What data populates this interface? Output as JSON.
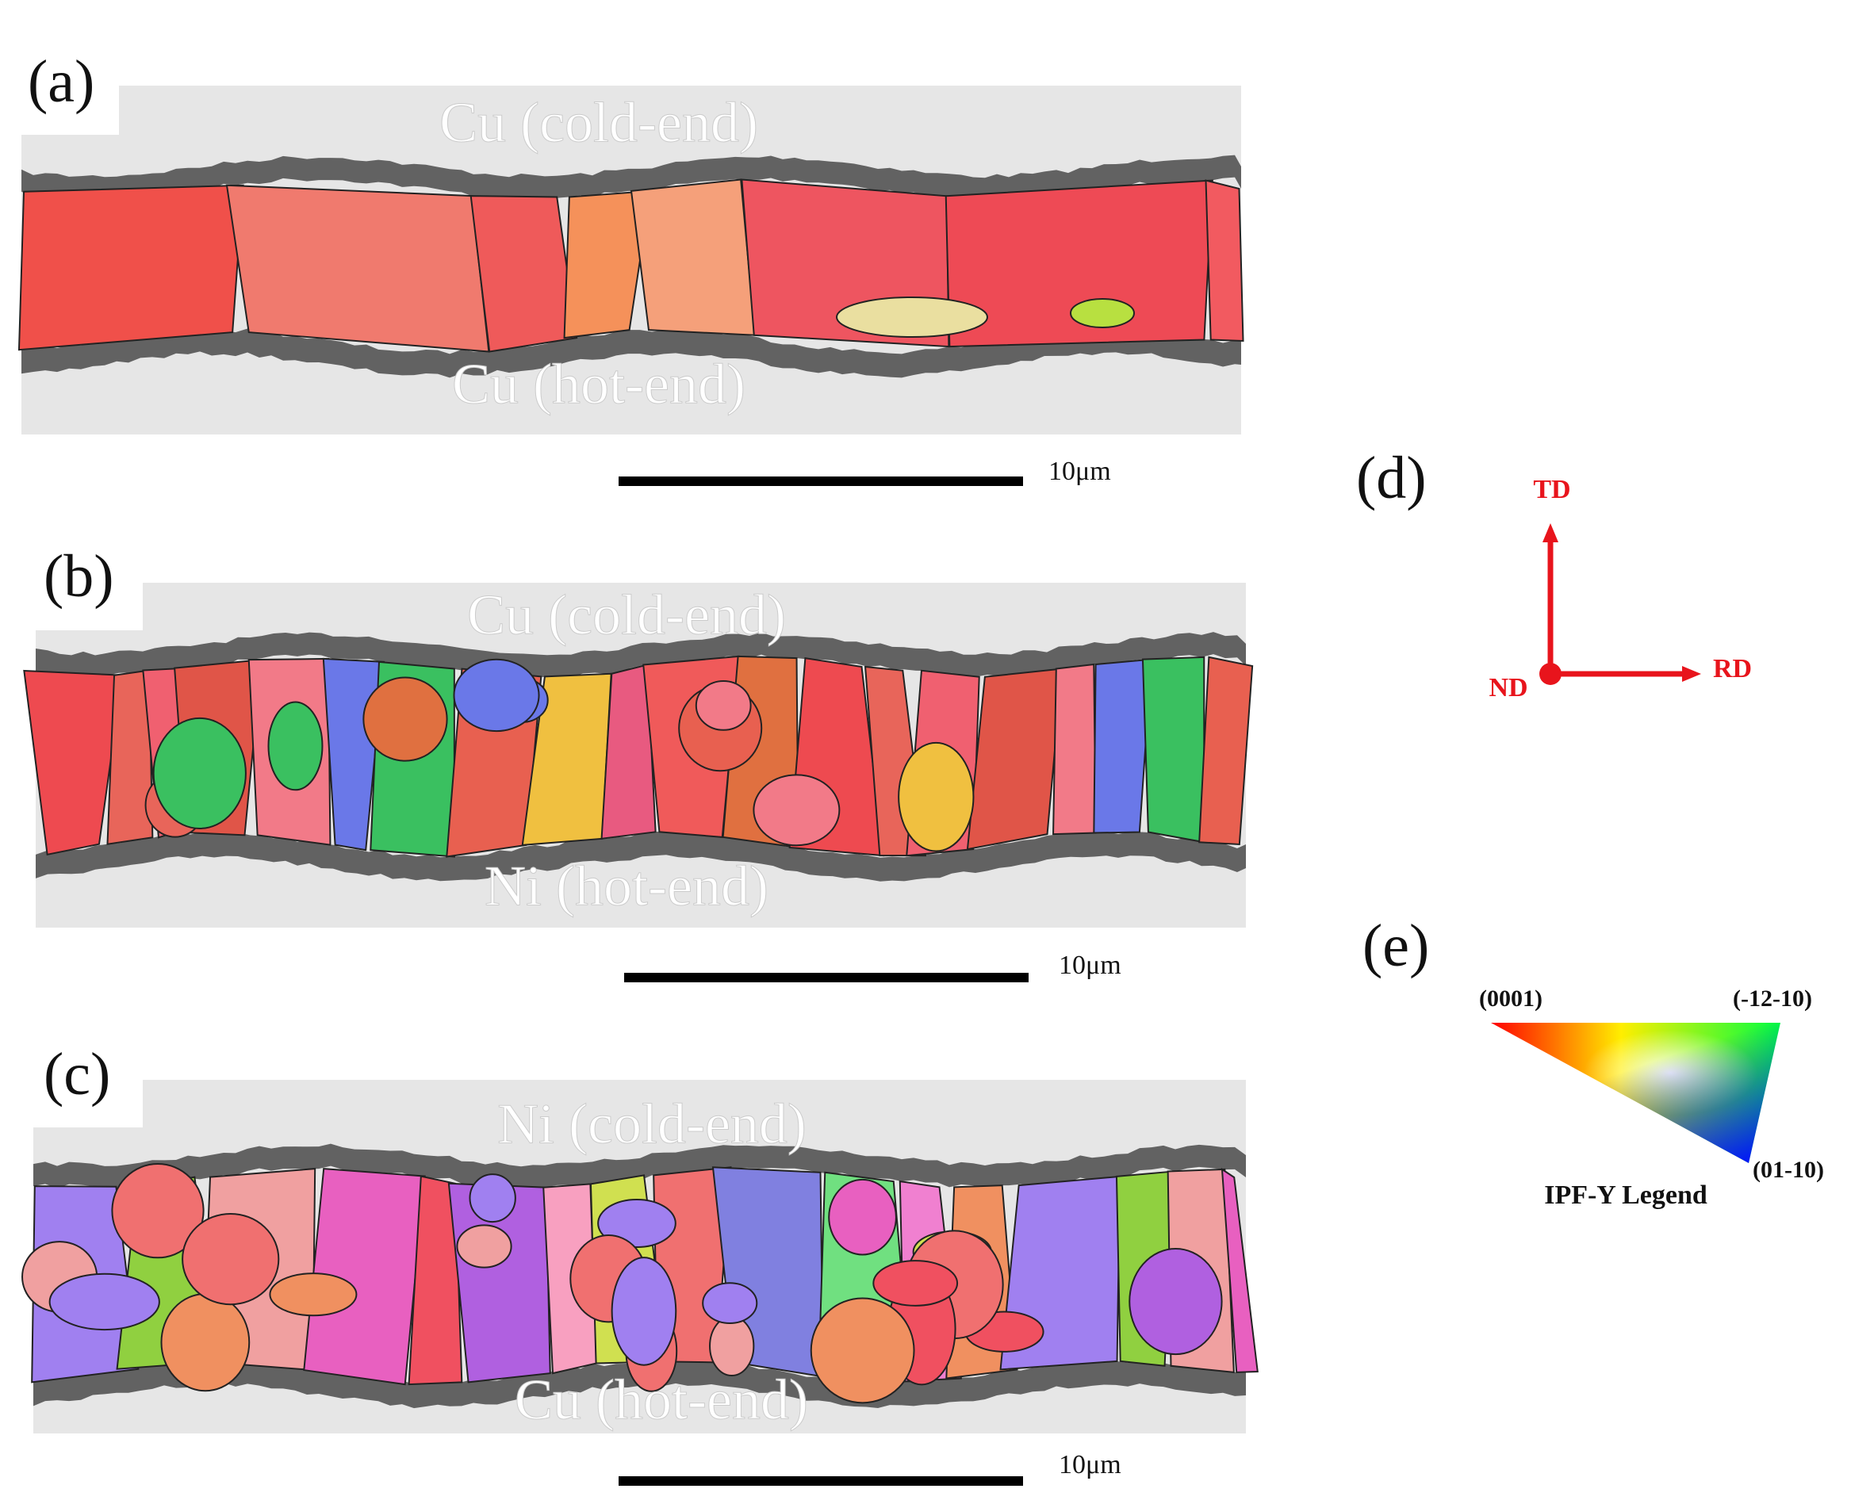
{
  "panels": [
    {
      "label": "(a)",
      "top_text": "Cu (cold-end)",
      "bottom_text": "Cu (hot-end)",
      "scale_bar": "10μm"
    },
    {
      "label": "(b)",
      "top_text": "Cu (cold-end)",
      "bottom_text": "Ni (hot-end)",
      "scale_bar": "10μm"
    },
    {
      "label": "(c)",
      "top_text": "Ni (cold-end)",
      "bottom_text": "Cu (hot-end)",
      "scale_bar": "10μm"
    }
  ],
  "axes": {
    "label": "(d)",
    "up": "TD",
    "origin": "ND",
    "right": "RD"
  },
  "legend": {
    "label": "(e)",
    "corner_top_left": "(0001)",
    "corner_top_right": "(-12-10)",
    "corner_bottom": "(01-10)",
    "title": "IPF-Y Legend"
  }
}
